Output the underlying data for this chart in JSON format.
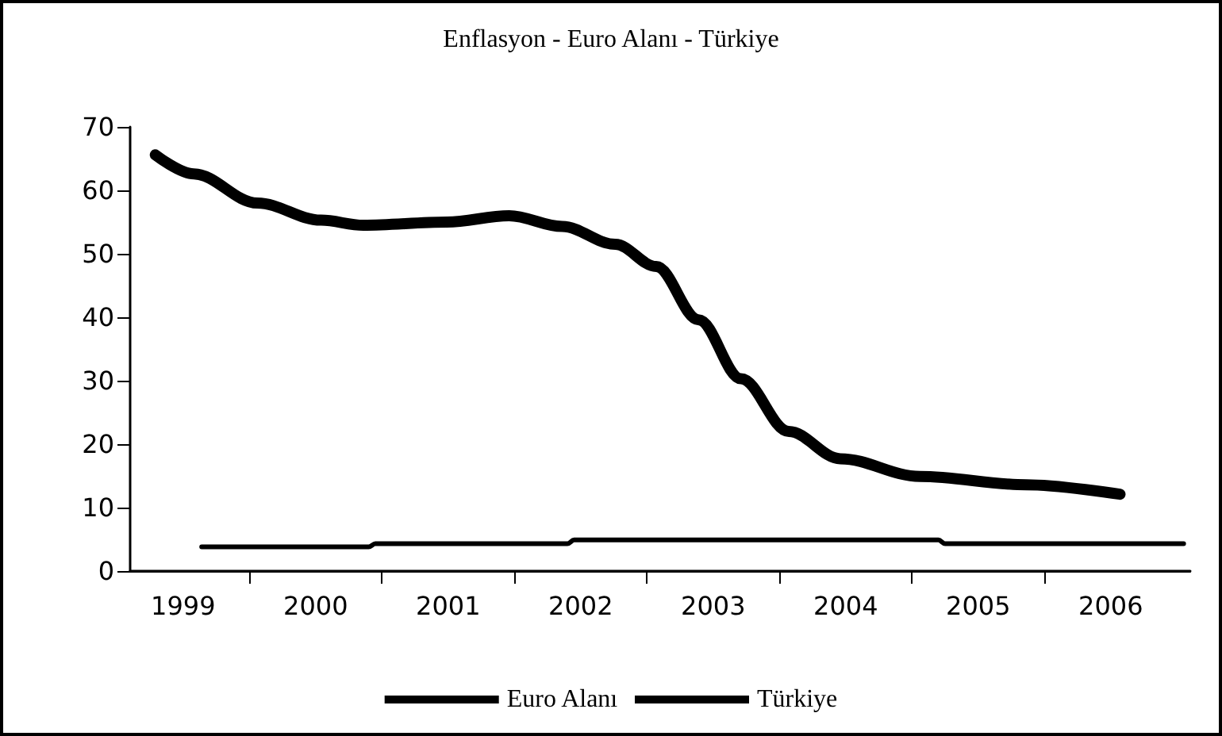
{
  "chart_data": {
    "type": "line",
    "title": "Enflasyon - Euro Alanı - Türkiye",
    "xlim": [
      1998.6,
      2006.6
    ],
    "xticks": [
      {
        "value": 1999,
        "label": "1999"
      },
      {
        "value": 1999.5,
        "label": null
      },
      {
        "value": 2000,
        "label": "2000"
      },
      {
        "value": 2000.5,
        "label": null
      },
      {
        "value": 2001,
        "label": "2001"
      },
      {
        "value": 2001.5,
        "label": null
      },
      {
        "value": 2002,
        "label": "2002"
      },
      {
        "value": 2002.5,
        "label": null
      },
      {
        "value": 2003,
        "label": "2003"
      },
      {
        "value": 2003.5,
        "label": null
      },
      {
        "value": 2004,
        "label": "2004"
      },
      {
        "value": 2004.5,
        "label": null
      },
      {
        "value": 2005,
        "label": "2005"
      },
      {
        "value": 2005.5,
        "label": null
      },
      {
        "value": 2006,
        "label": "2006"
      }
    ],
    "ylim": [
      0,
      70
    ],
    "yticks": [
      0,
      10,
      20,
      30,
      40,
      50,
      60,
      70
    ],
    "grid": false,
    "legend": "bottom",
    "marker": "none",
    "line_style": "solid",
    "series": [
      {
        "name": "Euro Alanı",
        "color": "#000000",
        "x": [
          1999.14,
          2000.4,
          2000.45,
          2001.9,
          2001.95,
          2004.7,
          2004.75,
          2006.55
        ],
        "values": [
          3.8,
          3.8,
          4.3,
          4.3,
          4.9,
          4.9,
          4.3,
          4.3
        ]
      },
      {
        "name": "Türkiye",
        "color": "#000000",
        "x": [
          1998.79,
          1999.08,
          1999.56,
          2000.04,
          2000.36,
          2000.99,
          2001.46,
          2001.86,
          2002.26,
          2002.57,
          2002.89,
          2003.21,
          2003.57,
          2003.96,
          2004.56,
          2005.36,
          2006.07
        ],
        "values": [
          65.6,
          62.6,
          58,
          55.3,
          54.5,
          55,
          56,
          54.3,
          51.5,
          48,
          39.6,
          30.3,
          22,
          17.7,
          14.9,
          13.6,
          12.1
        ]
      }
    ]
  }
}
